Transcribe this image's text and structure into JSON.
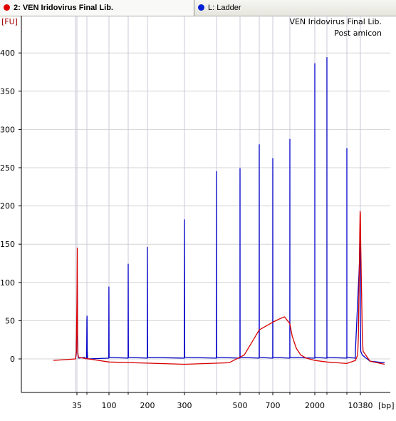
{
  "tabs": [
    {
      "label": "2: VEN Iridovirus Final Lib.",
      "dot_color": "#e00000"
    },
    {
      "label": "L: Ladder",
      "dot_color": "#0020d8"
    }
  ],
  "annotation": {
    "line1": "VEN Iridovirus Final Lib.",
    "line2": "Post amicon"
  },
  "chart_data": {
    "type": "line",
    "ylabel": "[FU]",
    "xlabel": "[bp]",
    "ylim": [
      -45,
      420
    ],
    "grid": true,
    "y_ticks": [
      0,
      50,
      100,
      150,
      200,
      250,
      300,
      350,
      400
    ],
    "x_ticks": [
      "35",
      "100",
      "200",
      "300",
      "500",
      "700",
      "2000",
      "10380"
    ],
    "series": [
      {
        "name": "L: Ladder",
        "color": "#0000c8",
        "points": [
          [
            34.5,
            0
          ],
          [
            34.8,
            8
          ],
          [
            35,
            45
          ],
          [
            35.1,
            97
          ],
          [
            35.3,
            60
          ],
          [
            35.5,
            25
          ],
          [
            35.8,
            8
          ],
          [
            36.3,
            3
          ],
          [
            37,
            1
          ],
          [
            46,
            2
          ],
          [
            48,
            0
          ],
          [
            49.5,
            1
          ],
          [
            50,
            52
          ],
          [
            50.2,
            56
          ],
          [
            50.6,
            10
          ],
          [
            51.2,
            0
          ],
          [
            99.3,
            1
          ],
          [
            99.8,
            94
          ],
          [
            100.3,
            2
          ],
          [
            149.5,
            1
          ],
          [
            150,
            124
          ],
          [
            150.5,
            2
          ],
          [
            199.5,
            1
          ],
          [
            200,
            146
          ],
          [
            200.5,
            2
          ],
          [
            299.3,
            1
          ],
          [
            300,
            182
          ],
          [
            300.7,
            2
          ],
          [
            399.5,
            1
          ],
          [
            400,
            245
          ],
          [
            400.5,
            2
          ],
          [
            499.5,
            1
          ],
          [
            500,
            249
          ],
          [
            500.5,
            2
          ],
          [
            599.5,
            1
          ],
          [
            600,
            280
          ],
          [
            600.5,
            2
          ],
          [
            699.5,
            1
          ],
          [
            700,
            262
          ],
          [
            700.5,
            2
          ],
          [
            849.5,
            1
          ],
          [
            850,
            287
          ],
          [
            850.5,
            2
          ],
          [
            1999,
            1
          ],
          [
            2000,
            386
          ],
          [
            2001,
            2
          ],
          [
            2999,
            1
          ],
          [
            3000,
            394
          ],
          [
            3001,
            2
          ],
          [
            6999,
            1
          ],
          [
            7000,
            275
          ],
          [
            7001,
            2
          ],
          [
            8999,
            1
          ],
          [
            9000,
            10
          ],
          [
            10380,
            152
          ],
          [
            10381,
            60
          ],
          [
            10400,
            10
          ],
          [
            10500,
            5
          ],
          [
            11000,
            -3
          ],
          [
            12000,
            -5
          ]
        ]
      },
      {
        "name": "2: VEN Iridovirus Final Lib.",
        "color": "#d80000",
        "points": [
          [
            10,
            -2
          ],
          [
            34.5,
            0
          ],
          [
            34.8,
            10
          ],
          [
            35,
            80
          ],
          [
            35.1,
            145
          ],
          [
            35.3,
            60
          ],
          [
            35.6,
            15
          ],
          [
            36,
            5
          ],
          [
            37,
            2
          ],
          [
            100,
            -4
          ],
          [
            300,
            -7
          ],
          [
            450,
            -5
          ],
          [
            520,
            5
          ],
          [
            560,
            22
          ],
          [
            600,
            38
          ],
          [
            700,
            48
          ],
          [
            750,
            52
          ],
          [
            800,
            55
          ],
          [
            850,
            46
          ],
          [
            900,
            30
          ],
          [
            1000,
            14
          ],
          [
            1200,
            5
          ],
          [
            1500,
            1
          ],
          [
            2000,
            -2
          ],
          [
            3000,
            -4
          ],
          [
            7000,
            -6
          ],
          [
            9000,
            -2
          ],
          [
            9600,
            5
          ],
          [
            9800,
            30
          ],
          [
            10000,
            100
          ],
          [
            10200,
            165
          ],
          [
            10300,
            193
          ],
          [
            10380,
            190
          ],
          [
            10400,
            150
          ],
          [
            10450,
            90
          ],
          [
            10500,
            30
          ],
          [
            10550,
            10
          ],
          [
            11000,
            -3
          ],
          [
            12000,
            -7
          ]
        ]
      }
    ]
  }
}
